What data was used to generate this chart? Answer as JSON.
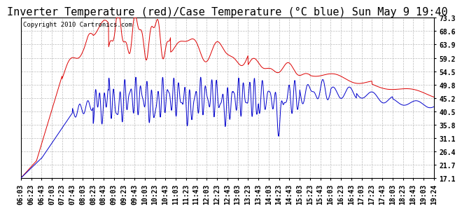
{
  "title": "Inverter Temperature (red)/Case Temperature (°C blue) Sun May 9 19:40",
  "copyright": "Copyright 2010 Cartronics.com",
  "y_ticks": [
    17.1,
    21.7,
    26.4,
    31.1,
    35.8,
    40.5,
    45.2,
    49.8,
    54.5,
    59.2,
    63.9,
    68.6,
    73.3
  ],
  "x_labels": [
    "06:03",
    "06:23",
    "06:43",
    "07:03",
    "07:23",
    "07:43",
    "08:03",
    "08:23",
    "08:43",
    "09:03",
    "09:23",
    "09:43",
    "10:03",
    "10:23",
    "10:43",
    "11:03",
    "11:23",
    "11:43",
    "12:03",
    "12:23",
    "12:43",
    "13:03",
    "13:23",
    "13:43",
    "14:03",
    "14:23",
    "14:43",
    "15:03",
    "15:23",
    "15:43",
    "16:03",
    "16:23",
    "16:43",
    "17:03",
    "17:23",
    "17:43",
    "18:03",
    "18:23",
    "18:43",
    "19:03",
    "19:24"
  ],
  "bg_color": "#ffffff",
  "plot_bg_color": "#ffffff",
  "grid_color": "#bbbbbb",
  "red_color": "#dd0000",
  "blue_color": "#0000cc",
  "title_fontsize": 11,
  "tick_fontsize": 7,
  "copyright_fontsize": 6.5
}
